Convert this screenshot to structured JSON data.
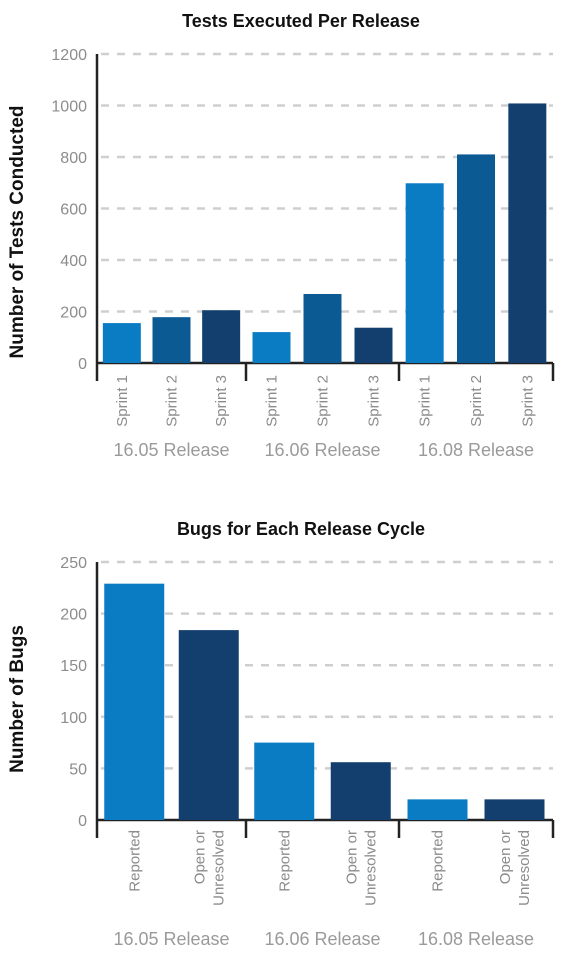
{
  "chart_data": [
    {
      "type": "bar",
      "title": "Tests Executed Per Release",
      "ylabel": "Number of Tests Conducted",
      "xlabel": "",
      "ylim": [
        0,
        1200
      ],
      "yticks": [
        "0",
        "200",
        "400",
        "600",
        "800",
        "1000",
        "1200"
      ],
      "grid": true,
      "groups": [
        {
          "label": "16.05 Release",
          "bars": [
            {
              "label": "Sprint 1",
              "value": 155,
              "color": "#0a7cc4"
            },
            {
              "label": "Sprint 2",
              "value": 178,
              "color": "#0c5a94"
            },
            {
              "label": "Sprint 3",
              "value": 205,
              "color": "#123f6e"
            }
          ]
        },
        {
          "label": "16.06 Release",
          "bars": [
            {
              "label": "Sprint 1",
              "value": 120,
              "color": "#0a7cc4"
            },
            {
              "label": "Sprint 2",
              "value": 268,
              "color": "#0c5a94"
            },
            {
              "label": "Sprint 3",
              "value": 137,
              "color": "#123f6e"
            }
          ]
        },
        {
          "label": "16.08 Release",
          "bars": [
            {
              "label": "Sprint 1",
              "value": 698,
              "color": "#0a7cc4"
            },
            {
              "label": "Sprint 2",
              "value": 810,
              "color": "#0c5a94"
            },
            {
              "label": "Sprint 3",
              "value": 1008,
              "color": "#123f6e"
            }
          ]
        }
      ]
    },
    {
      "type": "bar",
      "title": "Bugs for Each Release Cycle",
      "ylabel": "Number of Bugs",
      "xlabel": "",
      "ylim": [
        0,
        250
      ],
      "yticks": [
        "0",
        "50",
        "100",
        "150",
        "200",
        "250"
      ],
      "grid": true,
      "groups": [
        {
          "label": "16.05 Release",
          "bars": [
            {
              "label": "Reported",
              "value": 229,
              "color": "#0a7cc4"
            },
            {
              "label": "Open or\nUnresolved",
              "value": 184,
              "color": "#123f6e"
            }
          ]
        },
        {
          "label": "16.06 Release",
          "bars": [
            {
              "label": "Reported",
              "value": 75,
              "color": "#0a7cc4"
            },
            {
              "label": "Open or\nUnresolved",
              "value": 56,
              "color": "#123f6e"
            }
          ]
        },
        {
          "label": "16.08 Release",
          "bars": [
            {
              "label": "Reported",
              "value": 20,
              "color": "#0a7cc4"
            },
            {
              "label": "Open or\nUnresolved",
              "value": 20,
              "color": "#123f6e"
            }
          ]
        }
      ]
    }
  ]
}
